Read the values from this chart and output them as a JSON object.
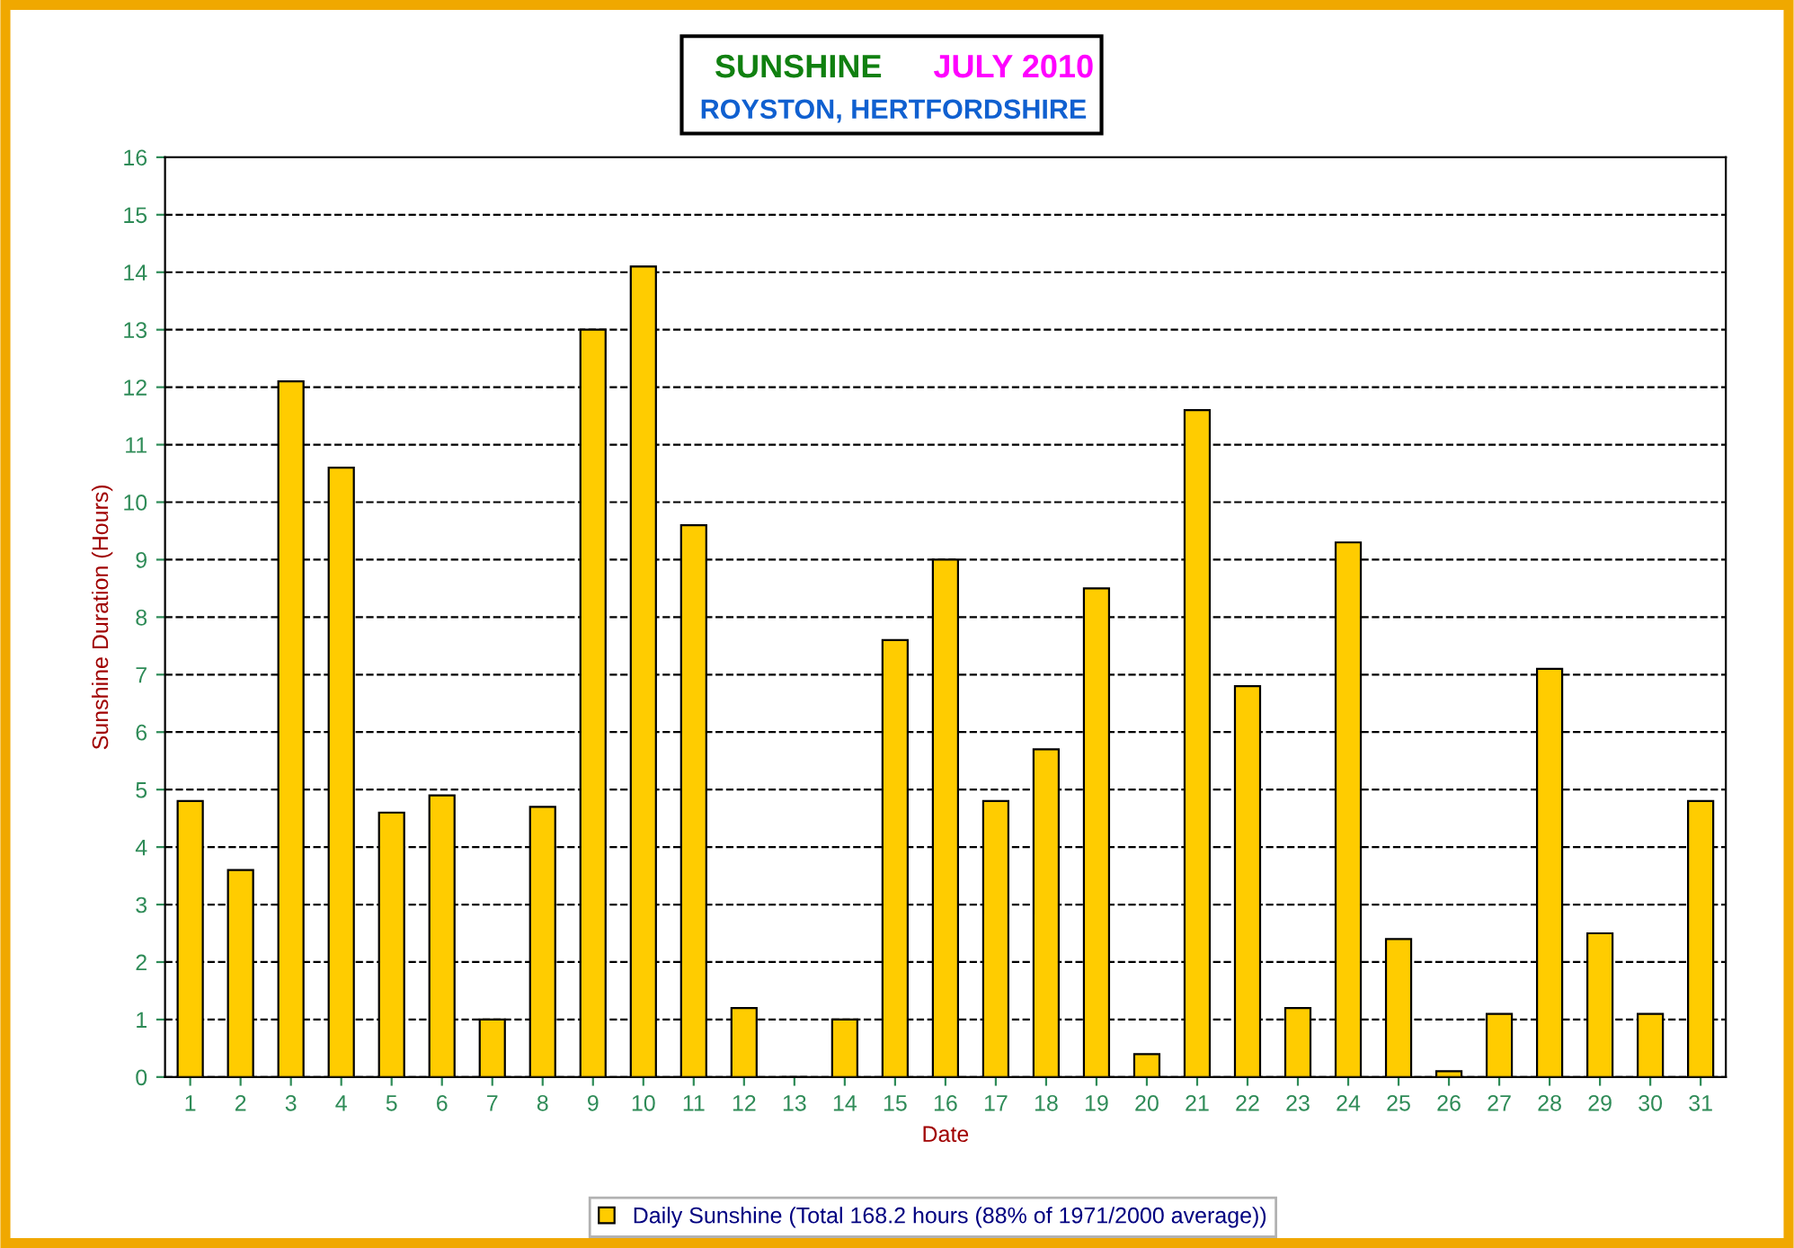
{
  "chart_data": {
    "type": "bar",
    "title": "SUNSHINE   JULY 2010",
    "subtitle": "ROYSTON, HERTFORDSHIRE",
    "xlabel": "Date",
    "ylabel": "Sunshine Duration (Hours)",
    "categories": [
      "1",
      "2",
      "3",
      "4",
      "5",
      "6",
      "7",
      "8",
      "9",
      "10",
      "11",
      "12",
      "13",
      "14",
      "15",
      "16",
      "17",
      "18",
      "19",
      "20",
      "21",
      "22",
      "23",
      "24",
      "25",
      "26",
      "27",
      "28",
      "29",
      "30",
      "31"
    ],
    "series": [
      {
        "name": "Daily Sunshine (Total 168.2 hours (88% of 1971/2000 average))",
        "color": "#ffcc00",
        "values": [
          4.8,
          3.6,
          12.1,
          10.6,
          4.6,
          4.9,
          1.0,
          4.7,
          13.0,
          14.1,
          9.6,
          1.2,
          0.0,
          1.0,
          7.6,
          9.0,
          4.8,
          5.7,
          8.5,
          0.4,
          11.6,
          6.8,
          1.2,
          9.3,
          2.4,
          0.1,
          1.1,
          7.1,
          2.5,
          1.1,
          4.8
        ]
      }
    ],
    "ylim": [
      0,
      16
    ],
    "yticks": [
      0,
      1,
      2,
      3,
      4,
      5,
      6,
      7,
      8,
      9,
      10,
      11,
      12,
      13,
      14,
      15,
      16
    ],
    "grid": "y",
    "legend": "bottom"
  }
}
